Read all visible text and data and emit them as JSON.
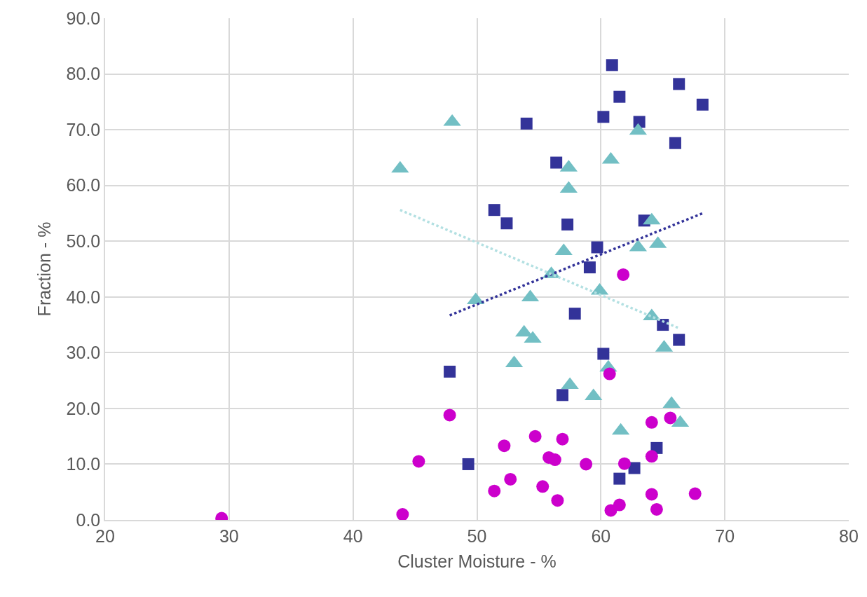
{
  "chart_data": {
    "type": "scatter",
    "xlabel": "Cluster Moisture - %",
    "ylabel": "Fraction - %",
    "xlim": [
      20,
      80
    ],
    "xticks": [
      20,
      30,
      40,
      50,
      60,
      70,
      80
    ],
    "ylim": [
      0,
      90
    ],
    "yticks": [
      {
        "value": 0,
        "label": "0.0"
      },
      {
        "value": 10,
        "label": "10.0"
      },
      {
        "value": 20,
        "label": "20.0"
      },
      {
        "value": 30,
        "label": "30.0"
      },
      {
        "value": 40,
        "label": "40.0"
      },
      {
        "value": 50,
        "label": "50.0"
      },
      {
        "value": 60,
        "label": "60.0"
      },
      {
        "value": 70,
        "label": "70.0"
      },
      {
        "value": 80,
        "label": "80.0"
      },
      {
        "value": 90,
        "label": "90.0"
      }
    ],
    "grid": true,
    "series": [
      {
        "color": "#333399",
        "marker": "square",
        "x": [
          60.9,
          66.3,
          68.2,
          61.5,
          60.2,
          63.1,
          54.0,
          66.0,
          56.4,
          51.4,
          52.4,
          63.5,
          57.3,
          59.7,
          59.1,
          57.9,
          65.0,
          66.3,
          60.2,
          47.8,
          56.9,
          49.3,
          64.5,
          62.7,
          61.5
        ],
        "values": [
          81.6,
          78.2,
          74.5,
          75.9,
          72.3,
          71.4,
          71.1,
          67.6,
          64.1,
          55.6,
          53.2,
          53.7,
          53.0,
          48.9,
          45.3,
          37.0,
          35.0,
          32.3,
          29.8,
          26.6,
          22.4,
          10.0,
          12.9,
          9.3,
          7.4
        ]
      },
      {
        "color": "#72bfc4",
        "marker": "triangle",
        "x": [
          48.0,
          43.8,
          63.0,
          60.8,
          57.4,
          57.4,
          64.1,
          57.0,
          63.0,
          64.6,
          56.0,
          59.9,
          49.9,
          54.3,
          64.1,
          53.8,
          54.5,
          53.0,
          60.6,
          57.5,
          59.4,
          65.7,
          61.6,
          66.4,
          65.1
        ],
        "values": [
          71.4,
          63.0,
          69.8,
          64.6,
          63.2,
          59.4,
          53.7,
          48.2,
          48.9,
          49.5,
          44.1,
          41.1,
          39.4,
          39.9,
          36.5,
          33.6,
          32.5,
          28.1,
          27.3,
          24.2,
          22.2,
          20.8,
          16.0,
          17.4,
          30.9
        ]
      },
      {
        "color": "#cc00cc",
        "marker": "circle",
        "x": [
          61.8,
          60.7,
          47.8,
          64.1,
          65.6,
          54.7,
          56.9,
          52.2,
          45.3,
          55.8,
          56.3,
          58.8,
          61.9,
          64.1,
          52.7,
          51.4,
          55.3,
          56.5,
          61.5,
          60.8,
          64.1,
          64.5,
          67.6,
          44.0,
          29.4
        ],
        "values": [
          44.0,
          26.2,
          18.8,
          17.5,
          18.3,
          15.0,
          14.5,
          13.3,
          10.5,
          11.2,
          10.8,
          10.0,
          10.1,
          11.4,
          7.3,
          5.2,
          6.0,
          3.5,
          2.7,
          1.7,
          4.6,
          1.9,
          4.7,
          1.0,
          0.3
        ]
      },
      {
        "type": "line",
        "color": "#333399",
        "line_style": "dotted",
        "marker": "none",
        "x": [
          47.8,
          68.2
        ],
        "values": [
          36.7,
          55.0
        ]
      },
      {
        "type": "line",
        "color": "#b3e0e2",
        "line_style": "dotted",
        "marker": "none",
        "x": [
          43.8,
          66.3
        ],
        "values": [
          55.6,
          34.4
        ]
      }
    ]
  }
}
